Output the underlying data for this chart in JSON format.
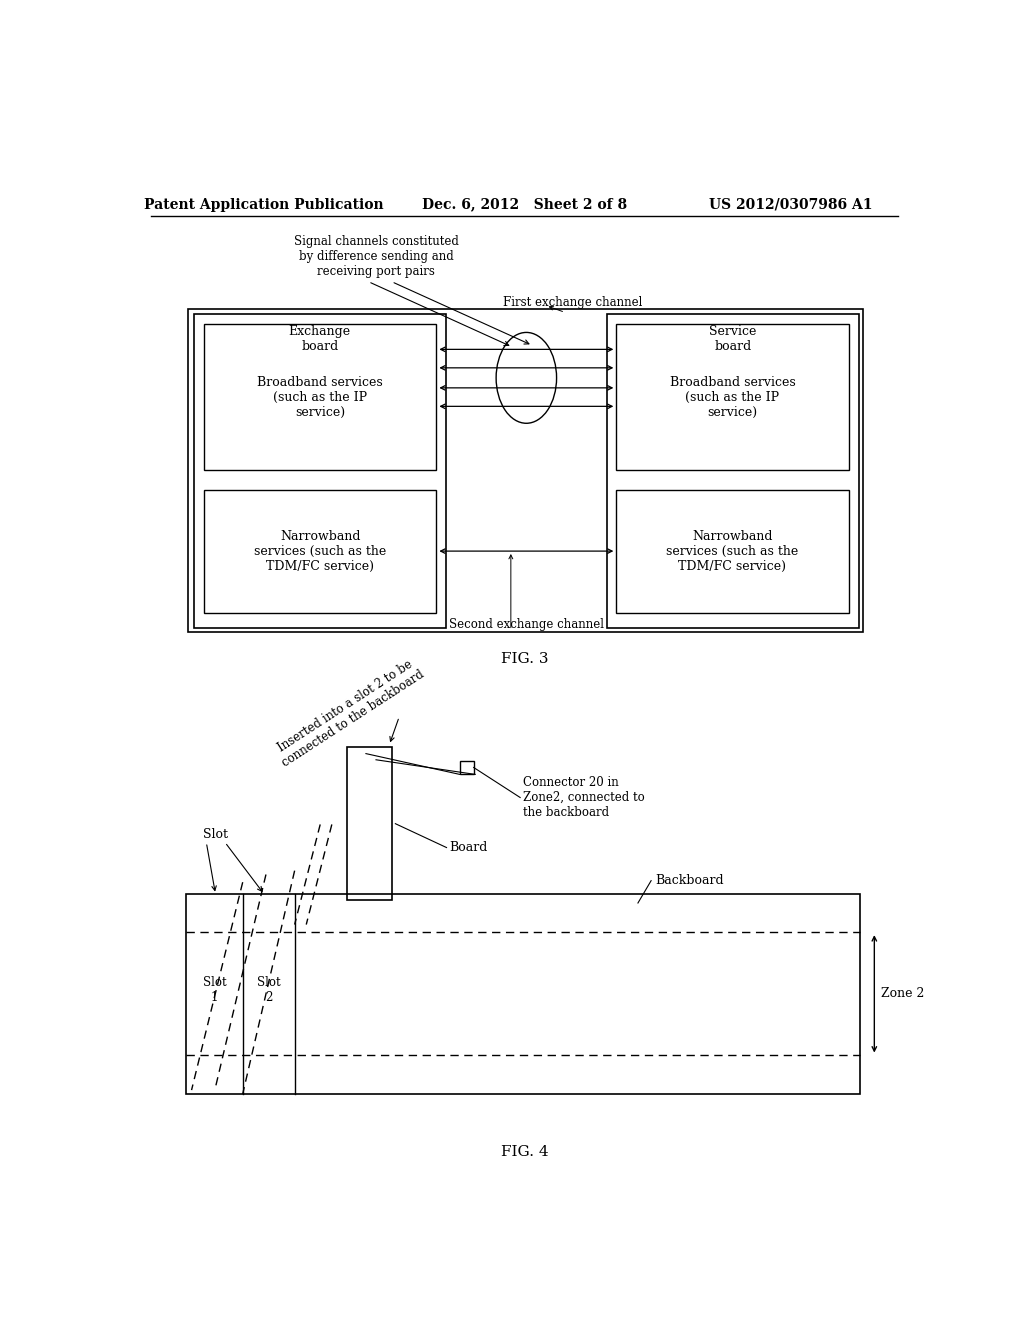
{
  "bg_color": "#ffffff",
  "header_left": "Patent Application Publication",
  "header_mid": "Dec. 6, 2012   Sheet 2 of 8",
  "header_right": "US 2012/0307986 A1",
  "fig3_label": "FIG. 3",
  "fig4_label": "FIG. 4",
  "label_exchange_board": "Exchange\nboard",
  "label_service_board": "Service\nboard",
  "label_broadband_left": "Broadband services\n(such as the IP\nservice)",
  "label_broadband_right": "Broadband services\n(such as the IP\nservice)",
  "label_narrowband_left": "Narrowband\nservices (such as the\nTDM/FC service)",
  "label_narrowband_right": "Narrowband\nservices (such as the\nTDM/FC service)",
  "label_signal_channels": "Signal channels constituted\nby difference sending and\nreceiving port pairs",
  "label_first_exchange": "First exchange channel",
  "label_second_exchange": "Second exchange channel",
  "label_slot": "Slot",
  "label_slot1": "Slot\n1",
  "label_slot2": "Slot\n2",
  "label_board": "Board",
  "label_backboard": "Backboard",
  "label_zone2": "Zone 2",
  "label_connector": "Connector 20 in\nZone2, connected to\nthe backboard",
  "label_inserted": "Inserted into a slot 2 to be\nconnected to the backboard"
}
